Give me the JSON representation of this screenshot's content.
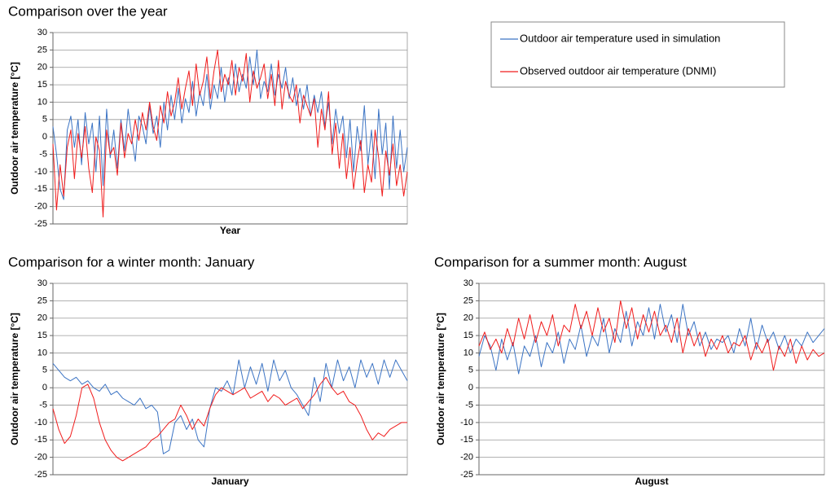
{
  "chart_data": [
    {
      "type": "line",
      "title": "Comparison over the year",
      "xlabel": "Year",
      "ylabel": "Outdoor air temperature [°C]",
      "ylim": [
        -25,
        30
      ],
      "yticks": [
        -25,
        -20,
        -15,
        -10,
        -5,
        0,
        5,
        10,
        15,
        20,
        25,
        30
      ],
      "grid": true,
      "series": [
        {
          "name": "Outdoor air temperature used in simulation",
          "color": "#3c74c4",
          "values": [
            3,
            -5,
            -15,
            -18,
            2,
            6,
            -3,
            5,
            -8,
            7,
            -2,
            4,
            -10,
            6,
            -14,
            8,
            -6,
            2,
            -9,
            5,
            -4,
            8,
            0,
            -7,
            6,
            3,
            -2,
            9,
            1,
            6,
            -3,
            10,
            2,
            12,
            5,
            14,
            4,
            11,
            7,
            16,
            6,
            13,
            9,
            18,
            8,
            15,
            11,
            20,
            10,
            17,
            12,
            21,
            13,
            18,
            14,
            23,
            15,
            25,
            11,
            16,
            13,
            21,
            12,
            18,
            14,
            20,
            11,
            17,
            9,
            14,
            8,
            15,
            6,
            12,
            7,
            13,
            3,
            10,
            -2,
            8,
            1,
            6,
            -6,
            5,
            -10,
            3,
            -4,
            9,
            -8,
            2,
            -12,
            8,
            -5,
            4,
            -15,
            6,
            -9,
            2,
            -10,
            -3
          ]
        },
        {
          "name": "Observed outdoor air temperature (DNMI)",
          "color": "#f01c1c",
          "values": [
            -2,
            -21,
            -8,
            -17,
            -3,
            2,
            -12,
            1,
            -6,
            3,
            -9,
            -16,
            0,
            -4,
            -23,
            2,
            -5,
            -3,
            -11,
            4,
            -6,
            1,
            -2,
            5,
            -1,
            7,
            2,
            10,
            3,
            -1,
            9,
            4,
            13,
            6,
            10,
            17,
            8,
            14,
            19,
            9,
            21,
            12,
            16,
            23,
            11,
            19,
            25,
            13,
            18,
            15,
            22,
            12,
            20,
            16,
            24,
            10,
            19,
            14,
            17,
            21,
            11,
            18,
            9,
            22,
            8,
            16,
            12,
            10,
            15,
            4,
            12,
            9,
            6,
            11,
            -3,
            8,
            2,
            13,
            -5,
            4,
            -9,
            1,
            -12,
            -3,
            -15,
            -7,
            -1,
            -16,
            -8,
            -13,
            2,
            -6,
            -17,
            -4,
            -11,
            -2,
            -14,
            -8,
            -17,
            -10
          ]
        }
      ]
    },
    {
      "type": "line",
      "title": "Comparison for a winter month: January",
      "xlabel": "January",
      "ylabel": "Outdoor air temperature [°C]",
      "ylim": [
        -25,
        30
      ],
      "yticks": [
        -25,
        -20,
        -15,
        -10,
        -5,
        0,
        5,
        10,
        15,
        20,
        25,
        30
      ],
      "grid": true,
      "series": [
        {
          "color": "#3c74c4",
          "values": [
            7,
            5,
            3,
            2,
            3,
            1,
            2,
            0,
            -1,
            1,
            -2,
            -1,
            -3,
            -4,
            -5,
            -3,
            -6,
            -5,
            -7,
            -19,
            -18,
            -10,
            -8,
            -12,
            -9,
            -15,
            -17,
            -6,
            0,
            -1,
            2,
            -2,
            8,
            0,
            6,
            1,
            7,
            -1,
            8,
            2,
            5,
            0,
            -2,
            -5,
            -8,
            3,
            -4,
            7,
            0,
            8,
            2,
            6,
            0,
            8,
            3,
            7,
            1,
            8,
            3,
            8,
            5,
            2
          ]
        },
        {
          "color": "#f01c1c",
          "values": [
            -6,
            -12,
            -16,
            -14,
            -8,
            0,
            1,
            -3,
            -10,
            -15,
            -18,
            -20,
            -21,
            -20,
            -19,
            -18,
            -17,
            -15,
            -14,
            -12,
            -10,
            -9,
            -5,
            -8,
            -12,
            -9,
            -11,
            -6,
            -2,
            0,
            -1,
            -2,
            -1,
            0,
            -3,
            -2,
            -1,
            -4,
            -2,
            -3,
            -5,
            -4,
            -3,
            -6,
            -4,
            -2,
            1,
            3,
            0,
            -2,
            -1,
            -4,
            -5,
            -8,
            -12,
            -15,
            -13,
            -14,
            -12,
            -11,
            -10,
            -10
          ]
        }
      ]
    },
    {
      "type": "line",
      "title": "Comparison for a summer month: August",
      "xlabel": "August",
      "ylabel": "Outdoor air temperature [°C]",
      "ylim": [
        -25,
        30
      ],
      "yticks": [
        -25,
        -20,
        -15,
        -10,
        -5,
        0,
        5,
        10,
        15,
        20,
        25,
        30
      ],
      "grid": true,
      "series": [
        {
          "color": "#3c74c4",
          "values": [
            9,
            15,
            12,
            5,
            14,
            8,
            13,
            4,
            12,
            9,
            15,
            6,
            13,
            10,
            16,
            7,
            14,
            11,
            18,
            9,
            15,
            12,
            20,
            10,
            17,
            13,
            22,
            12,
            19,
            15,
            23,
            14,
            24,
            16,
            21,
            13,
            24,
            15,
            19,
            12,
            16,
            11,
            14,
            13,
            15,
            10,
            17,
            12,
            20,
            11,
            18,
            13,
            16,
            11,
            15,
            10,
            14,
            12,
            16,
            13,
            15,
            17
          ]
        },
        {
          "color": "#f01c1c",
          "values": [
            12,
            16,
            11,
            14,
            10,
            17,
            12,
            20,
            14,
            21,
            13,
            19,
            15,
            21,
            12,
            18,
            16,
            24,
            17,
            22,
            15,
            23,
            16,
            20,
            13,
            25,
            17,
            23,
            14,
            21,
            16,
            22,
            15,
            18,
            13,
            20,
            10,
            17,
            12,
            16,
            9,
            14,
            11,
            15,
            10,
            13,
            12,
            15,
            8,
            13,
            10,
            14,
            5,
            12,
            9,
            14,
            7,
            12,
            8,
            11,
            9,
            10
          ]
        }
      ]
    }
  ]
}
